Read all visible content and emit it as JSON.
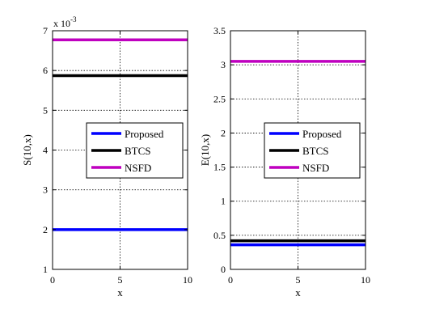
{
  "chart_data": [
    {
      "type": "line",
      "xlabel": "x",
      "ylabel": "S(10,x)",
      "multiplier": {
        "base": "x 10",
        "exponent": "-3"
      },
      "xlim": [
        0,
        10
      ],
      "ylim": [
        1,
        7
      ],
      "xticks": [
        0,
        5,
        10
      ],
      "yticks": [
        1,
        2,
        3,
        4,
        5,
        6,
        7
      ],
      "grid": true,
      "legend_position": "center-right",
      "series": [
        {
          "name": "Proposed",
          "color": "#0000ff",
          "x": [
            0,
            10
          ],
          "y": [
            2.0,
            2.0
          ]
        },
        {
          "name": "BTCS",
          "color": "#000000",
          "x": [
            0,
            10
          ],
          "y": [
            5.87,
            5.87
          ]
        },
        {
          "name": "NSFD",
          "color": "#bf00bf",
          "x": [
            0,
            10
          ],
          "y": [
            6.77,
            6.77
          ]
        }
      ]
    },
    {
      "type": "line",
      "xlabel": "x",
      "ylabel": "E(10,x)",
      "xlim": [
        0,
        10
      ],
      "ylim": [
        0,
        3.5
      ],
      "xticks": [
        0,
        5,
        10
      ],
      "yticks": [
        0,
        0.5,
        1,
        1.5,
        2,
        2.5,
        3,
        3.5
      ],
      "grid": true,
      "legend_position": "center-right",
      "series": [
        {
          "name": "Proposed",
          "color": "#0000ff",
          "x": [
            0,
            10
          ],
          "y": [
            0.36,
            0.36
          ]
        },
        {
          "name": "BTCS",
          "color": "#000000",
          "x": [
            0,
            10
          ],
          "y": [
            0.42,
            0.42
          ]
        },
        {
          "name": "NSFD",
          "color": "#bf00bf",
          "x": [
            0,
            10
          ],
          "y": [
            3.05,
            3.05
          ]
        }
      ]
    }
  ]
}
